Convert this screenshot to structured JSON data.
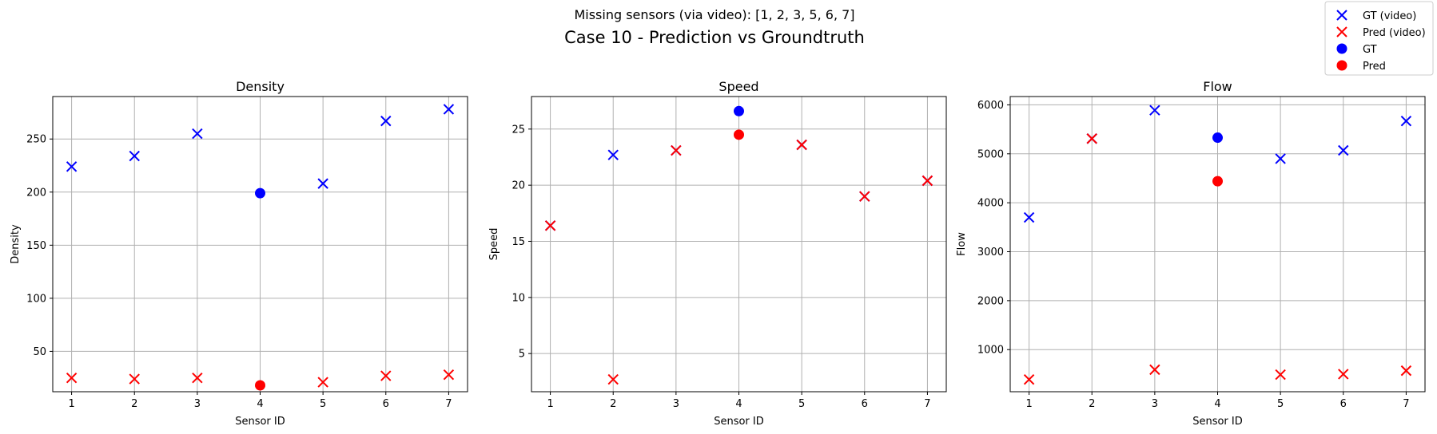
{
  "suptitle": "Missing sensors (via video): [1, 2, 3, 5, 6, 7]",
  "title": "Case 10 - Prediction vs Groundtruth",
  "legend": {
    "placement": "top-right",
    "entries": [
      {
        "label": "GT (video)",
        "marker": "x",
        "color": "#0000ff"
      },
      {
        "label": "Pred (video)",
        "marker": "x",
        "color": "#ff0000"
      },
      {
        "label": "GT",
        "marker": "o",
        "color": "#0000ff"
      },
      {
        "label": "Pred",
        "marker": "o",
        "color": "#ff0000"
      }
    ]
  },
  "chart_data": [
    {
      "type": "scatter",
      "title": "Density",
      "xlabel": "Sensor ID",
      "ylabel": "Density",
      "grid": true,
      "xlim": [
        0.7,
        7.3
      ],
      "ylim": [
        12,
        290
      ],
      "xticks": [
        1,
        2,
        3,
        4,
        5,
        6,
        7
      ],
      "yticks": [
        50,
        100,
        150,
        200,
        250
      ],
      "series": [
        {
          "name": "GT (video)",
          "marker": "x",
          "color": "#0000ff",
          "x": [
            1,
            2,
            3,
            5,
            6,
            7
          ],
          "y": [
            224,
            234,
            255,
            208,
            267,
            278
          ]
        },
        {
          "name": "Pred (video)",
          "marker": "x",
          "color": "#ff0000",
          "x": [
            1,
            2,
            3,
            5,
            6,
            7
          ],
          "y": [
            25,
            24,
            25,
            21,
            27,
            28
          ]
        },
        {
          "name": "GT",
          "marker": "o",
          "color": "#0000ff",
          "x": [
            4
          ],
          "y": [
            199
          ]
        },
        {
          "name": "Pred",
          "marker": "o",
          "color": "#ff0000",
          "x": [
            4
          ],
          "y": [
            18
          ]
        }
      ]
    },
    {
      "type": "scatter",
      "title": "Speed",
      "xlabel": "Sensor ID",
      "ylabel": "Speed",
      "grid": true,
      "xlim": [
        0.7,
        7.3
      ],
      "ylim": [
        1.6,
        27.9
      ],
      "xticks": [
        1,
        2,
        3,
        4,
        5,
        6,
        7
      ],
      "yticks": [
        5,
        10,
        15,
        20,
        25
      ],
      "series": [
        {
          "name": "GT (video)",
          "marker": "x",
          "color": "#0000ff",
          "x": [
            1,
            2,
            3,
            5,
            6,
            7
          ],
          "y": [
            16.4,
            22.7,
            23.1,
            23.6,
            19.0,
            20.4
          ]
        },
        {
          "name": "Pred (video)",
          "marker": "x",
          "color": "#ff0000",
          "x": [
            1,
            2,
            3,
            5,
            6,
            7
          ],
          "y": [
            16.4,
            2.7,
            23.1,
            23.6,
            19.0,
            20.4
          ]
        },
        {
          "name": "GT",
          "marker": "o",
          "color": "#0000ff",
          "x": [
            4
          ],
          "y": [
            26.6
          ]
        },
        {
          "name": "Pred",
          "marker": "o",
          "color": "#ff0000",
          "x": [
            4
          ],
          "y": [
            24.5
          ]
        }
      ]
    },
    {
      "type": "scatter",
      "title": "Flow",
      "xlabel": "Sensor ID",
      "ylabel": "Flow",
      "grid": true,
      "xlim": [
        0.7,
        7.3
      ],
      "ylim": [
        140,
        6170
      ],
      "xticks": [
        1,
        2,
        3,
        4,
        5,
        6,
        7
      ],
      "yticks": [
        1000,
        2000,
        3000,
        4000,
        5000,
        6000
      ],
      "series": [
        {
          "name": "GT (video)",
          "marker": "x",
          "color": "#0000ff",
          "x": [
            1,
            2,
            3,
            5,
            6,
            7
          ],
          "y": [
            3700,
            5310,
            5890,
            4900,
            5070,
            5670
          ]
        },
        {
          "name": "Pred (video)",
          "marker": "x",
          "color": "#ff0000",
          "x": [
            1,
            2,
            3,
            5,
            6,
            7
          ],
          "y": [
            390,
            5310,
            590,
            490,
            500,
            570
          ]
        },
        {
          "name": "GT",
          "marker": "o",
          "color": "#0000ff",
          "x": [
            4
          ],
          "y": [
            5330
          ]
        },
        {
          "name": "Pred",
          "marker": "o",
          "color": "#ff0000",
          "x": [
            4
          ],
          "y": [
            4440
          ]
        }
      ]
    }
  ]
}
